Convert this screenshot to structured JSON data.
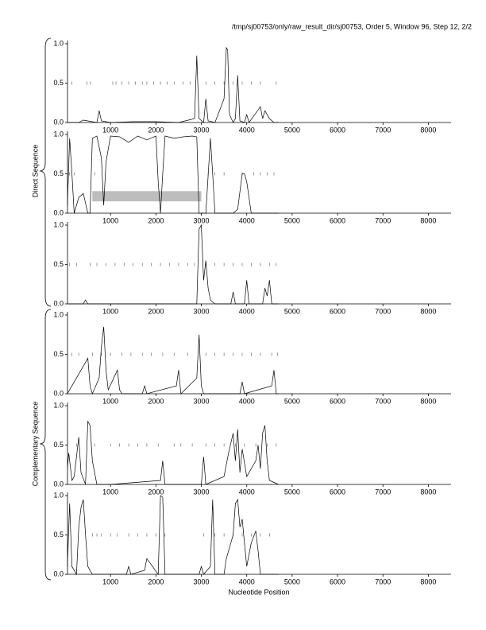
{
  "title": "/tmp/sj00753/only/raw_result_dir/sj00753, Order 5, Window 96, Step 12, 2/2",
  "direct_label": "Direct Sequence",
  "complementary_label": "Complementary Sequence",
  "x_label": "Nucleotide Position",
  "chart_data": [
    {
      "type": "line",
      "color": "#000000",
      "x": [
        50,
        300,
        400,
        700,
        750,
        800,
        1000,
        1500,
        2000,
        2500,
        2850,
        2900,
        2950,
        3050,
        3100,
        3150,
        3300,
        3500,
        3550,
        3580,
        3620,
        3700,
        3750,
        3800,
        3850,
        3950,
        4000,
        4050,
        4300,
        4350,
        4400,
        4500,
        4600,
        4700
      ],
      "values": [
        0,
        0,
        0.03,
        0,
        0.15,
        0.02,
        0,
        0.01,
        0.01,
        0,
        0.05,
        0.85,
        0.05,
        0,
        0.3,
        0.02,
        0,
        0.3,
        0.95,
        0.92,
        0.1,
        0,
        0.05,
        0.6,
        0.02,
        0,
        0.1,
        0,
        0.2,
        0.05,
        0.15,
        0.05,
        0,
        0
      ],
      "stop_codons": [
        150,
        480,
        560,
        1050,
        1120,
        1250,
        1400,
        1550,
        1700,
        1800,
        1950,
        2100,
        2250,
        2400,
        2600,
        2750,
        3100,
        3300,
        3500,
        3700,
        3900,
        4100,
        4300,
        4650
      ],
      "xlim": [
        0,
        8500
      ],
      "xticks": [
        1000,
        2000,
        3000,
        4000,
        5000,
        6000,
        7000,
        8000
      ],
      "ylim": [
        0,
        1
      ],
      "yticks": [
        {
          "value": 0,
          "label": "0.0"
        },
        0.5,
        {
          "value": 1,
          "label": "1.0"
        }
      ]
    },
    {
      "type": "line",
      "color": "#000000",
      "x": [
        50,
        100,
        150,
        200,
        300,
        400,
        500,
        550,
        600,
        700,
        800,
        850,
        900,
        1000,
        1200,
        1400,
        1600,
        1800,
        2000,
        2050,
        2100,
        2150,
        2200,
        2400,
        2600,
        2800,
        2900,
        2950,
        3000,
        3100,
        3200,
        3250,
        3300,
        3700,
        3800,
        3900,
        3950,
        4000,
        4100,
        4700
      ],
      "values": [
        0.1,
        0.95,
        0.5,
        0,
        0.2,
        0.25,
        0,
        0,
        0.95,
        0.98,
        0.7,
        0.1,
        0.65,
        0.98,
        0.97,
        0.9,
        0.98,
        0.93,
        0.98,
        0.4,
        0,
        0.5,
        0.98,
        0.95,
        0.97,
        0.98,
        0.97,
        0,
        0,
        0,
        0.95,
        0.5,
        0,
        0,
        0.05,
        0.5,
        0.5,
        0.4,
        0,
        0
      ],
      "stop_codons": [
        100,
        200,
        650,
        3150,
        3300,
        3500,
        3900,
        4150,
        4300,
        4450,
        4600
      ],
      "region": {
        "x": [
          600,
          3000
        ],
        "y": [
          0.15,
          0.28
        ]
      },
      "xlim": [
        0,
        8500
      ],
      "xticks": [
        1000,
        2000,
        3000,
        4000,
        5000,
        6000,
        7000,
        8000
      ],
      "ylim": [
        0,
        1
      ],
      "yticks": [
        {
          "value": 0,
          "label": "0.0"
        },
        0.5,
        {
          "value": 1,
          "label": "1.0"
        }
      ]
    },
    {
      "type": "line",
      "color": "#000000",
      "x": [
        50,
        400,
        450,
        500,
        2900,
        2950,
        3000,
        3050,
        3100,
        3150,
        3200,
        3300,
        3650,
        3700,
        3750,
        3950,
        4000,
        4050,
        4350,
        4400,
        4450,
        4500,
        4550,
        4700
      ],
      "values": [
        0,
        0,
        0.05,
        0,
        0,
        0.95,
        1,
        0.3,
        0.55,
        0.2,
        0.05,
        0,
        0,
        0.15,
        0,
        0,
        0.3,
        0,
        0,
        0.2,
        0.1,
        0.3,
        0,
        0
      ],
      "stop_codons": [
        100,
        250,
        550,
        700,
        900,
        1100,
        1300,
        1500,
        1700,
        1900,
        2100,
        2300,
        2500,
        2700,
        2850,
        3100,
        3300,
        3500,
        3700,
        3900,
        4100,
        4300,
        4500,
        4650
      ],
      "xlim": [
        0,
        8500
      ],
      "xticks": [
        1000,
        2000,
        3000,
        4000,
        5000,
        6000,
        7000,
        8000
      ],
      "ylim": [
        0,
        1
      ],
      "yticks": [
        {
          "value": 0,
          "label": "0.0"
        },
        0.5,
        {
          "value": 1,
          "label": "1.0"
        }
      ]
    },
    {
      "type": "line",
      "color": "#000000",
      "x": [
        50,
        100,
        500,
        550,
        600,
        750,
        800,
        850,
        900,
        950,
        1150,
        1200,
        1250,
        1700,
        1750,
        1800,
        2450,
        2500,
        2550,
        2900,
        2950,
        3000,
        3050,
        3850,
        3900,
        3950,
        4550,
        4600,
        4650,
        4700
      ],
      "values": [
        0,
        0.05,
        0.45,
        0.1,
        0,
        0.2,
        0.6,
        0.85,
        0.3,
        0.05,
        0.3,
        0.05,
        0,
        0,
        0.1,
        0,
        0.1,
        0.3,
        0,
        0.2,
        0.75,
        0.1,
        0,
        0,
        0.15,
        0,
        0.1,
        0.3,
        0,
        0
      ],
      "stop_codons": [
        150,
        300,
        600,
        800,
        1000,
        1250,
        1450,
        1700,
        1900,
        2150,
        2400,
        2700,
        3100,
        3300,
        3500,
        3700,
        3900,
        4100,
        4300,
        4550,
        4680
      ],
      "xlim": [
        0,
        8500
      ],
      "xticks": [
        1000,
        2000,
        3000,
        4000,
        5000,
        6000,
        7000,
        8000
      ],
      "ylim": [
        0,
        1
      ],
      "yticks": [
        {
          "value": 0,
          "label": "0.0"
        },
        0.5,
        {
          "value": 1,
          "label": "1.0"
        }
      ]
    },
    {
      "type": "line",
      "color": "#000000",
      "x": [
        50,
        80,
        150,
        200,
        300,
        350,
        450,
        500,
        550,
        600,
        700,
        1000,
        2100,
        2150,
        2200,
        3000,
        3050,
        3100,
        3500,
        3600,
        3700,
        3750,
        3800,
        3850,
        3900,
        4000,
        4200,
        4250,
        4300,
        4350,
        4400,
        4450,
        4500,
        4700
      ],
      "values": [
        0.2,
        0.4,
        0.05,
        0.1,
        0.6,
        0.15,
        0,
        0.8,
        0.75,
        0.3,
        0,
        0,
        0.05,
        0.3,
        0,
        0,
        0.35,
        0,
        0.1,
        0.4,
        0.65,
        0.3,
        0.7,
        0.15,
        0.45,
        0.1,
        0.3,
        0.5,
        0.2,
        0.65,
        0.75,
        0.3,
        0.05,
        0
      ],
      "stop_codons": [
        250,
        650,
        1000,
        1200,
        1400,
        1600,
        1800,
        2050,
        2400,
        2550,
        2800,
        3100,
        3300,
        3500,
        3750,
        3950,
        4200,
        4450,
        4650
      ],
      "xlim": [
        0,
        8500
      ],
      "xticks": [
        1000,
        2000,
        3000,
        4000,
        5000,
        6000,
        7000,
        8000
      ],
      "ylim": [
        0,
        1
      ],
      "yticks": [
        {
          "value": 0,
          "label": "0.0"
        },
        0.5,
        {
          "value": 1,
          "label": "1.0"
        }
      ]
    },
    {
      "type": "line",
      "color": "#000000",
      "x": [
        50,
        100,
        150,
        250,
        300,
        350,
        400,
        450,
        500,
        600,
        1350,
        1400,
        1450,
        1750,
        1800,
        2050,
        2100,
        2150,
        2200,
        2950,
        3000,
        3050,
        3200,
        3250,
        3300,
        3500,
        3550,
        3700,
        3750,
        3800,
        3850,
        3900,
        4000,
        4100,
        4200,
        4250,
        4300,
        4700
      ],
      "values": [
        0.1,
        0.9,
        0.1,
        0,
        0.6,
        0.85,
        0.95,
        0.5,
        0.1,
        0,
        0,
        0.1,
        0,
        0.05,
        0.2,
        0,
        1,
        0.98,
        0,
        0,
        0.1,
        0,
        0.1,
        0.95,
        0,
        0,
        0.2,
        0.5,
        0.9,
        0.95,
        0.6,
        0.7,
        0.1,
        0.4,
        0.55,
        0.3,
        0,
        0
      ],
      "stop_codons": [
        600,
        700,
        800,
        1000,
        1150,
        1400,
        1600,
        1800,
        2000,
        2200,
        3050,
        3300,
        3500,
        3700,
        3900,
        4100,
        4300,
        4500
      ],
      "xlim": [
        0,
        8500
      ],
      "xticks": [
        1000,
        2000,
        3000,
        4000,
        5000,
        6000,
        7000,
        8000
      ],
      "ylim": [
        0,
        1
      ],
      "yticks": [
        {
          "value": 0,
          "label": "0.0"
        },
        0.5,
        {
          "value": 1,
          "label": "1.0"
        }
      ]
    }
  ]
}
